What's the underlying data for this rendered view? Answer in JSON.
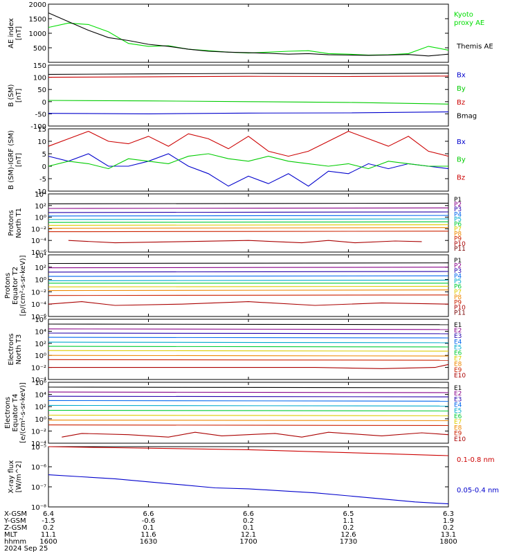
{
  "chart_data": [
    {
      "type": "line",
      "ylabel": [
        "AE index",
        "[nT]"
      ],
      "ylim": [
        0,
        2000
      ],
      "yticks": [
        0,
        500,
        1000,
        1500,
        2000
      ],
      "ytick_labels": [
        "500",
        "1000",
        "1500",
        "2000"
      ],
      "legend_position": "right",
      "series": [
        {
          "name": "Kyoto proxy AE",
          "color": "#00dd00",
          "x": [
            0,
            3,
            6,
            9,
            12,
            15,
            18,
            21,
            24,
            27,
            30,
            33,
            36,
            39,
            42,
            45,
            48,
            51,
            54,
            57,
            60
          ],
          "values": [
            1200,
            1350,
            1300,
            1050,
            650,
            550,
            570,
            450,
            400,
            350,
            320,
            350,
            380,
            400,
            300,
            280,
            250,
            260,
            300,
            550,
            420
          ]
        },
        {
          "name": "Themis AE",
          "color": "#000000",
          "x": [
            0,
            3,
            6,
            9,
            12,
            15,
            18,
            21,
            24,
            27,
            30,
            33,
            36,
            39,
            42,
            45,
            48,
            51,
            54,
            57,
            60
          ],
          "values": [
            1700,
            1400,
            1100,
            850,
            750,
            620,
            550,
            450,
            380,
            350,
            330,
            310,
            280,
            300,
            260,
            250,
            240,
            250,
            270,
            220,
            280
          ]
        }
      ]
    },
    {
      "type": "line",
      "ylabel": [
        "B (SM)",
        "[nT]"
      ],
      "ylim": [
        -100,
        150
      ],
      "yticks": [
        -100,
        -50,
        0,
        50,
        100,
        150
      ],
      "ytick_labels": [
        "-100",
        "-50",
        "0",
        "50",
        "100",
        "150"
      ],
      "legend_position": "right",
      "series": [
        {
          "name": "Bx",
          "color": "#0000cc",
          "x": [
            0,
            15,
            30,
            45,
            60
          ],
          "values": [
            -48,
            -50,
            -47,
            -46,
            -42
          ]
        },
        {
          "name": "By",
          "color": "#00cc00",
          "x": [
            0,
            15,
            30,
            45,
            60
          ],
          "values": [
            5,
            3,
            0,
            -3,
            -10
          ]
        },
        {
          "name": "Bz",
          "color": "#cc0000",
          "x": [
            0,
            15,
            30,
            45,
            60
          ],
          "values": [
            100,
            102,
            104,
            103,
            105
          ]
        },
        {
          "name": "Bmag",
          "color": "#000000",
          "x": [
            0,
            15,
            30,
            45,
            60
          ],
          "values": [
            112,
            114,
            116,
            115,
            117
          ]
        }
      ]
    },
    {
      "type": "line",
      "ylabel": [
        "B (SM)-IGRF (SM)",
        "[nT]"
      ],
      "ylim": [
        -10,
        15
      ],
      "yticks": [
        -10,
        -5,
        0,
        5,
        10,
        15
      ],
      "ytick_labels": [
        "-10",
        "-5",
        "0",
        "5",
        "10",
        "15"
      ],
      "legend_position": "right",
      "series": [
        {
          "name": "Bx",
          "color": "#0000cc",
          "x": [
            0,
            3,
            6,
            9,
            12,
            15,
            18,
            21,
            24,
            27,
            30,
            33,
            36,
            39,
            42,
            45,
            48,
            51,
            54,
            57,
            60
          ],
          "values": [
            4,
            2,
            5,
            0,
            0,
            2,
            5,
            0,
            -3,
            -8,
            -4,
            -7,
            -3,
            -8,
            -2,
            -3,
            1,
            -1,
            1,
            0,
            -1
          ]
        },
        {
          "name": "By",
          "color": "#00cc00",
          "x": [
            0,
            3,
            6,
            9,
            12,
            15,
            18,
            21,
            24,
            27,
            30,
            33,
            36,
            39,
            42,
            45,
            48,
            51,
            54,
            57,
            60
          ],
          "values": [
            0,
            2,
            1,
            -1,
            3,
            2,
            1,
            4,
            5,
            3,
            2,
            4,
            2,
            1,
            0,
            1,
            -1,
            2,
            1,
            0,
            0
          ]
        },
        {
          "name": "Bz",
          "color": "#cc0000",
          "x": [
            0,
            3,
            6,
            9,
            12,
            15,
            18,
            21,
            24,
            27,
            30,
            33,
            36,
            39,
            42,
            45,
            48,
            51,
            54,
            57,
            60
          ],
          "values": [
            8,
            11,
            14,
            10,
            9,
            12,
            8,
            13,
            11,
            7,
            12,
            6,
            4,
            6,
            10,
            14,
            11,
            8,
            12,
            6,
            4
          ]
        }
      ]
    },
    {
      "type": "line",
      "ylabel": [
        "Protons",
        "North T1"
      ],
      "yscale": "log",
      "ylim_log10": [
        -6,
        4
      ],
      "yticks_log10": [
        -6,
        -4,
        -2,
        0,
        2,
        4
      ],
      "legend_position": "right",
      "series": [
        {
          "name": "P1",
          "color": "#000000",
          "x": [
            0,
            60
          ],
          "values_log10": [
            2.3,
            2.4
          ]
        },
        {
          "name": "P2",
          "color": "#880088",
          "x": [
            0,
            60
          ],
          "values_log10": [
            1.5,
            1.6
          ]
        },
        {
          "name": "P3",
          "color": "#2200aa",
          "x": [
            0,
            60
          ],
          "values_log10": [
            0.8,
            0.9
          ]
        },
        {
          "name": "P4",
          "color": "#0066ee",
          "x": [
            0,
            60
          ],
          "values_log10": [
            0.2,
            0.3
          ]
        },
        {
          "name": "P5",
          "color": "#00aacc",
          "x": [
            0,
            60
          ],
          "values_log10": [
            -0.4,
            -0.3
          ]
        },
        {
          "name": "P6",
          "color": "#00cc33",
          "x": [
            0,
            60
          ],
          "values_log10": [
            -0.9,
            -0.8
          ]
        },
        {
          "name": "P7",
          "color": "#ddcc00",
          "x": [
            0,
            60
          ],
          "values_log10": [
            -1.4,
            -1.3
          ]
        },
        {
          "name": "P8",
          "color": "#ee8800",
          "x": [
            0,
            60
          ],
          "values_log10": [
            -1.9,
            -1.8
          ]
        },
        {
          "name": "P9",
          "color": "#cc2200",
          "x": [
            0,
            60
          ],
          "values_log10": [
            -2.5,
            -2.4
          ]
        },
        {
          "name": "P10",
          "color": "#aa0000",
          "x": [
            3,
            10,
            20,
            30,
            38,
            42,
            46,
            52,
            56
          ],
          "values_log10": [
            -4.0,
            -4.4,
            -4.2,
            -4.0,
            -4.4,
            -4.0,
            -4.4,
            -4.1,
            -4.2
          ]
        },
        {
          "name": "P11",
          "color": "#770000",
          "x": [],
          "values_log10": []
        }
      ]
    },
    {
      "type": "line",
      "ylabel": [
        "Protons",
        "Equator T2",
        "[p/(cm²-s-sr-keV)]"
      ],
      "yscale": "log",
      "ylim_log10": [
        -6,
        4
      ],
      "yticks_log10": [
        -6,
        -4,
        -2,
        0,
        2,
        4
      ],
      "legend_position": "right",
      "series": [
        {
          "name": "P1",
          "color": "#000000",
          "x": [
            0,
            60
          ],
          "values_log10": [
            2.6,
            2.7
          ]
        },
        {
          "name": "P2",
          "color": "#880088",
          "x": [
            0,
            60
          ],
          "values_log10": [
            1.9,
            2.0
          ]
        },
        {
          "name": "P3",
          "color": "#2200aa",
          "x": [
            0,
            60
          ],
          "values_log10": [
            1.2,
            1.3
          ]
        },
        {
          "name": "P4",
          "color": "#0066ee",
          "x": [
            0,
            60
          ],
          "values_log10": [
            0.5,
            0.6
          ]
        },
        {
          "name": "P5",
          "color": "#00aacc",
          "x": [
            0,
            60
          ],
          "values_log10": [
            -0.2,
            -0.1
          ]
        },
        {
          "name": "P6",
          "color": "#00cc33",
          "x": [
            0,
            60
          ],
          "values_log10": [
            -0.6,
            -0.6
          ]
        },
        {
          "name": "P7",
          "color": "#ddcc00",
          "x": [
            0,
            60
          ],
          "values_log10": [
            -1.2,
            -1.1
          ]
        },
        {
          "name": "P8",
          "color": "#ee8800",
          "x": [
            0,
            60
          ],
          "values_log10": [
            -1.8,
            -1.7
          ]
        },
        {
          "name": "P9",
          "color": "#cc2200",
          "x": [
            0,
            60
          ],
          "values_log10": [
            -2.6,
            -2.5
          ]
        },
        {
          "name": "P10",
          "color": "#aa0000",
          "x": [
            0,
            5,
            10,
            20,
            30,
            40,
            50,
            60
          ],
          "values_log10": [
            -4.0,
            -3.6,
            -4.2,
            -4.0,
            -3.6,
            -4.2,
            -3.8,
            -4.0
          ]
        },
        {
          "name": "P11",
          "color": "#770000",
          "x": [],
          "values_log10": []
        }
      ]
    },
    {
      "type": "line",
      "ylabel": [
        "Electrons",
        "North T3"
      ],
      "yscale": "log",
      "ylim_log10": [
        -4,
        6
      ],
      "yticks_log10": [
        -4,
        -2,
        0,
        2,
        4,
        6
      ],
      "legend_position": "right",
      "series": [
        {
          "name": "E1",
          "color": "#000000",
          "x": [
            0,
            60
          ],
          "values_log10": [
            5.2,
            5.1
          ]
        },
        {
          "name": "E2",
          "color": "#880088",
          "x": [
            0,
            60
          ],
          "values_log10": [
            4.4,
            4.3
          ]
        },
        {
          "name": "E3",
          "color": "#2200aa",
          "x": [
            0,
            60
          ],
          "values_log10": [
            3.7,
            3.6
          ]
        },
        {
          "name": "E4",
          "color": "#0066ee",
          "x": [
            0,
            60
          ],
          "values_log10": [
            3.0,
            2.9
          ]
        },
        {
          "name": "E5",
          "color": "#00aacc",
          "x": [
            0,
            60
          ],
          "values_log10": [
            2.2,
            2.1
          ]
        },
        {
          "name": "E6",
          "color": "#00cc33",
          "x": [
            0,
            60
          ],
          "values_log10": [
            1.5,
            1.4
          ]
        },
        {
          "name": "E7",
          "color": "#ddcc00",
          "x": [
            0,
            60
          ],
          "values_log10": [
            0.8,
            0.7
          ]
        },
        {
          "name": "E8",
          "color": "#ee8800",
          "x": [
            0,
            60
          ],
          "values_log10": [
            0.0,
            -0.1
          ]
        },
        {
          "name": "E9",
          "color": "#cc2200",
          "x": [
            0,
            60
          ],
          "values_log10": [
            -0.7,
            -0.8
          ]
        },
        {
          "name": "E10",
          "color": "#aa0000",
          "x": [
            0,
            10,
            20,
            30,
            40,
            50,
            58,
            60
          ],
          "values_log10": [
            -2.0,
            -2.0,
            -2.0,
            -2.0,
            -2.0,
            -2.2,
            -2.0,
            -1.5
          ]
        }
      ]
    },
    {
      "type": "line",
      "ylabel": [
        "Electrons",
        "Equator T4",
        "[e/(cm²-s-sr-keV)]"
      ],
      "yscale": "log",
      "ylim_log10": [
        -4,
        6
      ],
      "yticks_log10": [
        -4,
        -2,
        0,
        2,
        4,
        6
      ],
      "legend_position": "right",
      "series": [
        {
          "name": "E1",
          "color": "#000000",
          "x": [
            0,
            60
          ],
          "values_log10": [
            5.2,
            5.1
          ]
        },
        {
          "name": "E2",
          "color": "#880088",
          "x": [
            0,
            60
          ],
          "values_log10": [
            4.4,
            4.3
          ]
        },
        {
          "name": "E3",
          "color": "#2200aa",
          "x": [
            0,
            60
          ],
          "values_log10": [
            3.7,
            3.6
          ]
        },
        {
          "name": "E4",
          "color": "#0066ee",
          "x": [
            0,
            60
          ],
          "values_log10": [
            3.0,
            2.9
          ]
        },
        {
          "name": "E5",
          "color": "#00aacc",
          "x": [
            0,
            60
          ],
          "values_log10": [
            2.2,
            2.1
          ]
        },
        {
          "name": "E6",
          "color": "#00cc33",
          "x": [
            0,
            60
          ],
          "values_log10": [
            1.4,
            1.3
          ]
        },
        {
          "name": "E7",
          "color": "#ddcc00",
          "x": [
            0,
            60
          ],
          "values_log10": [
            0.6,
            0.5
          ]
        },
        {
          "name": "E8",
          "color": "#ee8800",
          "x": [
            0,
            60
          ],
          "values_log10": [
            -0.2,
            -0.3
          ]
        },
        {
          "name": "E9",
          "color": "#cc2200",
          "x": [
            0,
            60
          ],
          "values_log10": [
            -1.0,
            -1.1
          ]
        },
        {
          "name": "E10",
          "color": "#aa0000",
          "x": [
            2,
            5,
            12,
            18,
            22,
            26,
            34,
            38,
            42,
            50,
            56,
            60
          ],
          "values_log10": [
            -3.0,
            -2.4,
            -2.6,
            -3.0,
            -2.2,
            -2.8,
            -2.4,
            -3.0,
            -2.2,
            -2.8,
            -2.3,
            -2.6
          ]
        }
      ]
    },
    {
      "type": "line",
      "ylabel": [
        "X-ray flux",
        "[W/m^2]"
      ],
      "yscale": "log",
      "ylim_log10": [
        -8,
        -5
      ],
      "yticks_log10": [
        -8,
        -7,
        -6,
        -5
      ],
      "legend_position": "right",
      "series": [
        {
          "name": "0.1-0.8 nm",
          "color": "#cc0000",
          "x": [
            0,
            10,
            20,
            30,
            40,
            50,
            60
          ],
          "values_log10": [
            -5.0,
            -5.05,
            -5.1,
            -5.15,
            -5.25,
            -5.35,
            -5.45
          ]
        },
        {
          "name": "0.05-0.4 nm",
          "color": "#0000cc",
          "x": [
            0,
            5,
            10,
            15,
            20,
            25,
            30,
            35,
            40,
            45,
            50,
            55,
            60
          ],
          "values_log10": [
            -6.4,
            -6.5,
            -6.6,
            -6.75,
            -6.9,
            -7.05,
            -7.1,
            -7.2,
            -7.3,
            -7.45,
            -7.6,
            -7.75,
            -7.85
          ]
        }
      ]
    }
  ],
  "xaxis": {
    "ticks": [
      0,
      15,
      30,
      45,
      60
    ],
    "rows": [
      {
        "label": "X-GSM",
        "values": [
          "6.4",
          "6.6",
          "6.6",
          "6.5",
          "6.3"
        ]
      },
      {
        "label": "Y-GSM",
        "values": [
          "-1.5",
          "-0.6",
          "0.2",
          "1.1",
          "1.9"
        ]
      },
      {
        "label": "Z-GSM",
        "values": [
          "0.2",
          "0.1",
          "0.1",
          "0.2",
          "0.2"
        ]
      },
      {
        "label": "MLT",
        "values": [
          "11.1",
          "11.6",
          "12.1",
          "12.6",
          "13.1"
        ]
      },
      {
        "label": "hhmm",
        "values": [
          "1600",
          "1630",
          "1700",
          "1730",
          "1800"
        ]
      }
    ],
    "date": "2024 Sep 25"
  }
}
